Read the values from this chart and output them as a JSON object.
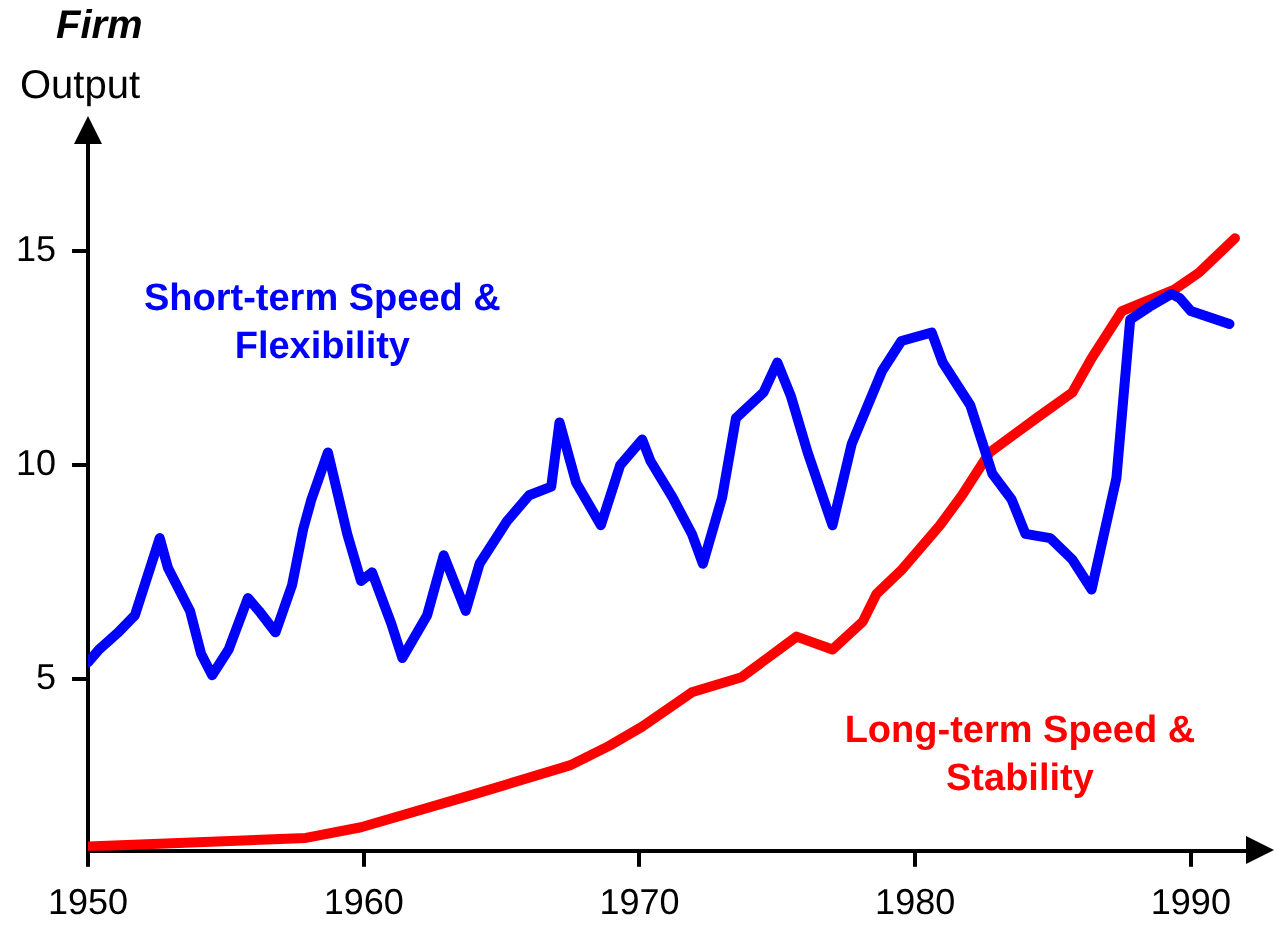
{
  "chart_data": {
    "type": "line",
    "title": "Firm",
    "ylabel": "Output",
    "xlim": [
      1950,
      1992
    ],
    "xticks": [
      1950,
      1960,
      1970,
      1980,
      1990
    ],
    "ylim": [
      1,
      17.5
    ],
    "yticks": [
      5,
      10,
      15
    ],
    "grid": false,
    "legend": false,
    "marker": "none",
    "line_style": "solid",
    "series": [
      {
        "name": "Short-term Speed & Flexibility",
        "color": "#0000ff",
        "x": [
          1950,
          1950.4,
          1951.1,
          1951.7,
          1952.6,
          1952.9,
          1953.7,
          1954.1,
          1954.5,
          1955.1,
          1955.8,
          1956.2,
          1956.8,
          1957.4,
          1957.8,
          1958.1,
          1958.7,
          1959.4,
          1959.9,
          1960.3,
          1961.0,
          1961.4,
          1962.3,
          1962.9,
          1963.7,
          1964.2,
          1965.2,
          1966.0,
          1966.8,
          1967.1,
          1967.7,
          1968.6,
          1969.3,
          1970.1,
          1970.4,
          1971.2,
          1971.9,
          1972.3,
          1973.0,
          1973.5,
          1974.5,
          1975.0,
          1975.5,
          1976.1,
          1977.0,
          1977.7,
          1978.8,
          1979.5,
          1980.6,
          1981.0,
          1982.0,
          1982.8,
          1983.5,
          1984.0,
          1984.9,
          1985.7,
          1986.4,
          1987.3,
          1987.8,
          1988.5,
          1989.3,
          1989.6,
          1990.0,
          1991.4
        ],
        "values": [
          5.4,
          5.7,
          6.1,
          6.5,
          8.3,
          7.6,
          6.6,
          5.6,
          5.1,
          5.7,
          6.9,
          6.6,
          6.1,
          7.2,
          8.5,
          9.2,
          10.3,
          8.4,
          7.3,
          7.5,
          6.3,
          5.5,
          6.5,
          7.9,
          6.6,
          7.7,
          8.7,
          9.3,
          9.5,
          11.0,
          9.6,
          8.6,
          10.0,
          10.6,
          10.1,
          9.25,
          8.4,
          7.7,
          9.25,
          11.1,
          11.7,
          12.4,
          11.6,
          10.3,
          8.6,
          10.5,
          12.2,
          12.9,
          13.1,
          12.4,
          11.4,
          9.8,
          9.2,
          8.4,
          8.3,
          7.8,
          7.1,
          9.7,
          13.4,
          13.7,
          14.0,
          13.9,
          13.6,
          13.3
        ]
      },
      {
        "name": "Long-term Speed & Stability",
        "color": "#ff0000",
        "x": [
          1950,
          1957.9,
          1959.9,
          1963.9,
          1967.5,
          1968.9,
          1970.1,
          1971.9,
          1973.7,
          1975.7,
          1977.0,
          1978.1,
          1978.6,
          1979.5,
          1980.9,
          1981.7,
          1982.7,
          1984.4,
          1985.7,
          1986.4,
          1987.5,
          1989.4,
          1990.3,
          1991.6
        ],
        "values": [
          1.1,
          1.3,
          1.55,
          2.3,
          3.0,
          3.45,
          3.9,
          4.7,
          5.05,
          6.0,
          5.7,
          6.35,
          7.0,
          7.55,
          8.6,
          9.3,
          10.3,
          11.1,
          11.7,
          12.5,
          13.6,
          14.1,
          14.5,
          15.3
        ]
      }
    ]
  }
}
